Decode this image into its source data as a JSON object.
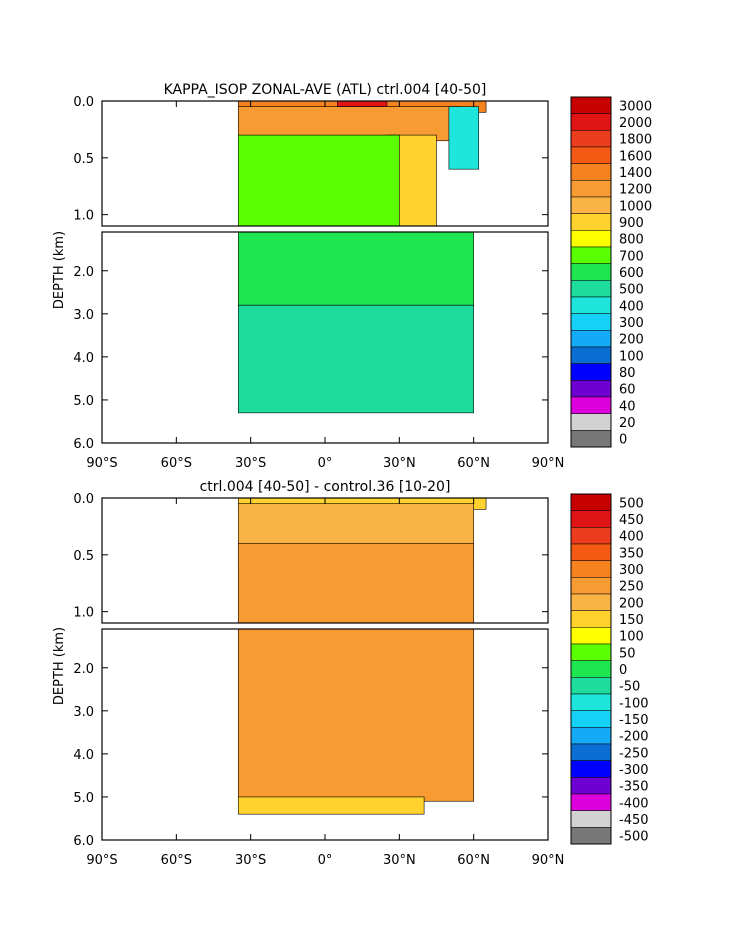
{
  "chart_data": [
    {
      "type": "heatmap",
      "title": "KAPPA_ISOP ZONAL-AVE (ATL) ctrl.004 [40-50]",
      "ylabel": "DEPTH (km)",
      "xlabel": "",
      "x_ticks": [
        "90°S",
        "60°S",
        "30°S",
        "0°",
        "30°N",
        "60°N",
        "90°N"
      ],
      "xlim": [
        -90,
        90
      ],
      "y_ticks_upper": [
        "0.0",
        "0.5",
        "1.0"
      ],
      "y_ticks_lower": [
        "2.0",
        "3.0",
        "4.0",
        "5.0",
        "6.0"
      ],
      "ylim_upper_km": [
        0,
        1.1
      ],
      "ylim_lower_km": [
        1.1,
        6.0
      ],
      "colorbar": {
        "levels": [
          "3000",
          "2000",
          "1800",
          "1600",
          "1400",
          "1200",
          "1000",
          "900",
          "800",
          "700",
          "600",
          "500",
          "400",
          "300",
          "200",
          "100",
          "80",
          "60",
          "40",
          "20",
          "0"
        ],
        "colors": [
          "#c80000",
          "#e01414",
          "#ec3c1e",
          "#f45a14",
          "#f5821e",
          "#f89b32",
          "#fab446",
          "#ffd22d",
          "#ffff00",
          "#5aff00",
          "#1ee650",
          "#1edc9b",
          "#1ee6dc",
          "#14d2f5",
          "#14aaf5",
          "#0a6ed2",
          "#0000ff",
          "#6e00d2",
          "#dc00dc",
          "#d2d2d2",
          "#787878"
        ]
      },
      "regions": [
        {
          "name": "surface-band",
          "level": "1400",
          "lat": [
            -35,
            65
          ],
          "depth_km": [
            0,
            0.1
          ]
        },
        {
          "name": "surface-max",
          "level": "2000",
          "lat": [
            5,
            25
          ],
          "depth_km": [
            0,
            0.05
          ]
        },
        {
          "name": "upper-orange",
          "level": "1200",
          "lat": [
            -35,
            55
          ],
          "depth_km": [
            0.05,
            0.35
          ]
        },
        {
          "name": "upper-midlat-yellow",
          "level": "900",
          "lat": [
            25,
            45
          ],
          "depth_km": [
            0.3,
            1.1
          ]
        },
        {
          "name": "upper-subpolar-cyan",
          "level": "400",
          "lat": [
            50,
            62
          ],
          "depth_km": [
            0.05,
            0.6
          ]
        },
        {
          "name": "upper-interior-green",
          "level": "700",
          "lat": [
            -35,
            30
          ],
          "depth_km": [
            0.3,
            1.1
          ]
        },
        {
          "name": "deep-green",
          "level": "600",
          "lat": [
            -35,
            60
          ],
          "depth_km": [
            1.1,
            2.8
          ]
        },
        {
          "name": "deep-cyan",
          "level": "500",
          "lat": [
            -35,
            60
          ],
          "depth_km": [
            2.8,
            5.3
          ]
        }
      ]
    },
    {
      "type": "heatmap",
      "title": "ctrl.004 [40-50] - control.36 [10-20]",
      "ylabel": "DEPTH (km)",
      "xlabel": "",
      "x_ticks": [
        "90°S",
        "60°S",
        "30°S",
        "0°",
        "30°N",
        "60°N",
        "90°N"
      ],
      "xlim": [
        -90,
        90
      ],
      "y_ticks_upper": [
        "0.0",
        "0.5",
        "1.0"
      ],
      "y_ticks_lower": [
        "2.0",
        "3.0",
        "4.0",
        "5.0",
        "6.0"
      ],
      "ylim_upper_km": [
        0,
        1.1
      ],
      "ylim_lower_km": [
        1.1,
        6.0
      ],
      "colorbar": {
        "levels": [
          "500",
          "450",
          "400",
          "350",
          "300",
          "250",
          "200",
          "150",
          "100",
          "50",
          "0",
          "-50",
          "-100",
          "-150",
          "-200",
          "-250",
          "-300",
          "-350",
          "-400",
          "-450",
          "-500"
        ],
        "colors": [
          "#c80000",
          "#e01414",
          "#ec3c1e",
          "#f45a14",
          "#f5821e",
          "#f89b32",
          "#fab446",
          "#ffd22d",
          "#ffff00",
          "#5aff00",
          "#1ee650",
          "#1edc9b",
          "#1ee6dc",
          "#14d2f5",
          "#14aaf5",
          "#0a6ed2",
          "#0000ff",
          "#6e00d2",
          "#dc00dc",
          "#d2d2d2",
          "#787878"
        ]
      },
      "regions": [
        {
          "name": "surface-band",
          "level": "150",
          "lat": [
            -35,
            65
          ],
          "depth_km": [
            0,
            0.1
          ]
        },
        {
          "name": "upper-light-orange",
          "level": "200",
          "lat": [
            -35,
            60
          ],
          "depth_km": [
            0.05,
            0.6
          ]
        },
        {
          "name": "interior-orange",
          "level": "250",
          "lat": [
            -35,
            60
          ],
          "depth_km": [
            0.4,
            5.1
          ]
        },
        {
          "name": "bottom-yellow",
          "level": "150",
          "lat": [
            -35,
            40
          ],
          "depth_km": [
            5.0,
            5.4
          ]
        }
      ]
    }
  ]
}
